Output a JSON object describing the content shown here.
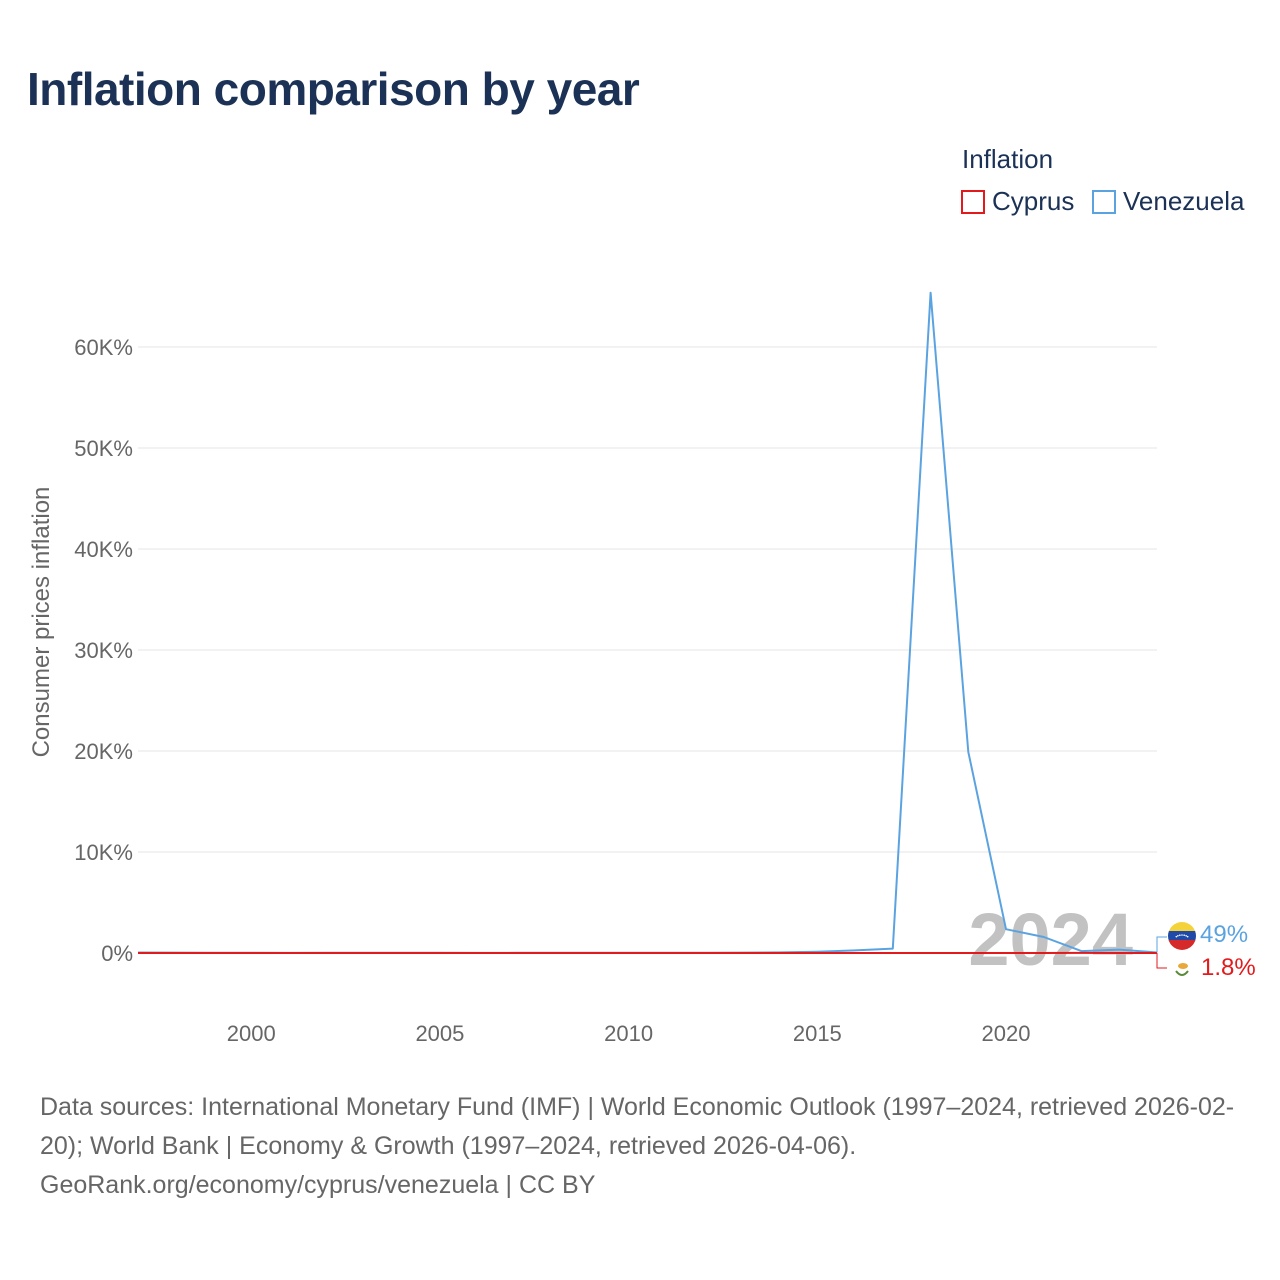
{
  "title": "Inflation comparison by year",
  "legend": {
    "title": "Inflation",
    "items": [
      {
        "label": "Cyprus",
        "color": "#e31a1c"
      },
      {
        "label": "Venezuela",
        "color": "#5ba3e0"
      }
    ]
  },
  "chart_data": {
    "type": "line",
    "ylabel": "Consumer prices inflation",
    "xlim": [
      1997,
      2024
    ],
    "ylim": [
      0,
      60000
    ],
    "y_ticks": [
      0,
      10000,
      20000,
      30000,
      40000,
      50000,
      60000
    ],
    "y_tick_labels": [
      "0%",
      "10K%",
      "20K%",
      "30K%",
      "40K%",
      "50K%",
      "60K%"
    ],
    "x_ticks": [
      2000,
      2005,
      2010,
      2015,
      2020
    ],
    "x_tick_labels": [
      "2000",
      "2005",
      "2010",
      "2015",
      "2020"
    ],
    "year_watermark": "2024",
    "x": [
      1997,
      1998,
      1999,
      2000,
      2001,
      2002,
      2003,
      2004,
      2005,
      2006,
      2007,
      2008,
      2009,
      2010,
      2011,
      2012,
      2013,
      2014,
      2015,
      2016,
      2017,
      2018,
      2019,
      2020,
      2021,
      2022,
      2023,
      2024
    ],
    "series": [
      {
        "name": "Cyprus",
        "color": "#e31a1c",
        "values": [
          3.6,
          2.2,
          1.8,
          4.9,
          2.0,
          2.8,
          4.0,
          1.9,
          2.0,
          2.2,
          2.2,
          4.4,
          0.2,
          2.6,
          3.5,
          3.1,
          0.4,
          -0.3,
          -1.5,
          -1.2,
          0.7,
          0.8,
          0.5,
          -1.1,
          2.3,
          8.1,
          3.9,
          1.8
        ],
        "end_label": "1.8%"
      },
      {
        "name": "Venezuela",
        "color": "#5ba3e0",
        "values": [
          50,
          36,
          24,
          16,
          12,
          22,
          31,
          22,
          16,
          14,
          19,
          31,
          27,
          28,
          26,
          21,
          41,
          62,
          122,
          255,
          438,
          65374,
          19906,
          2355,
          1588,
          186,
          337,
          49
        ],
        "end_label": "49%"
      }
    ]
  },
  "source": {
    "line1": "Data sources: International Monetary Fund (IMF) | World Economic Outlook (1997–2024, retrieved 2026-02-20); World Bank | Economy & Growth (1997–2024, retrieved 2026-04-06).",
    "line2": "GeoRank.org/economy/cyprus/venezuela | CC BY"
  }
}
